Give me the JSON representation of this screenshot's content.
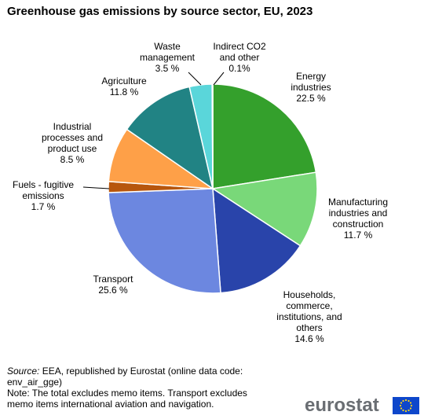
{
  "title": "Greenhouse gas emissions by source sector, EU, 2023",
  "chart_data": {
    "type": "pie",
    "slices": [
      {
        "name": "Energy\nindustries",
        "value": 22.5,
        "label": "22.5 %",
        "color": "#34a02c"
      },
      {
        "name": "Manufacturing\nindustries and\nconstruction",
        "value": 11.7,
        "label": "11.7 %",
        "color": "#79d879"
      },
      {
        "name": "Households,\ncommerce,\ninstitutions, and\nothers",
        "value": 14.6,
        "label": "14.6 %",
        "color": "#2944aa"
      },
      {
        "name": "Transport",
        "value": 25.6,
        "label": "25.6 %",
        "color": "#6c87e0"
      },
      {
        "name": "Fuels - fugitive\nemissions",
        "value": 1.7,
        "label": "1.7 %",
        "color": "#b7560d"
      },
      {
        "name": "Industrial\nprocesses and\nproduct use",
        "value": 8.5,
        "label": "8.5 %",
        "color": "#fea048"
      },
      {
        "name": "Agriculture",
        "value": 11.8,
        "label": "11.8 %",
        "color": "#218384"
      },
      {
        "name": "Waste\nmanagement",
        "value": 3.5,
        "label": "3.5 %",
        "color": "#5ad6da"
      },
      {
        "name": "Indirect CO2\nand other",
        "value": 0.1,
        "label": "0.1%",
        "color": "#a8e8ea"
      }
    ]
  },
  "footer": {
    "source_label": "Source:",
    "source_text": " EEA, republished by Eurostat (online data code:",
    "source_code": "env_air_gge)",
    "note": "Note: The total excludes memo items. Transport excludes",
    "note2": "memo items international aviation and navigation."
  },
  "logo": {
    "text": "eurostat"
  }
}
